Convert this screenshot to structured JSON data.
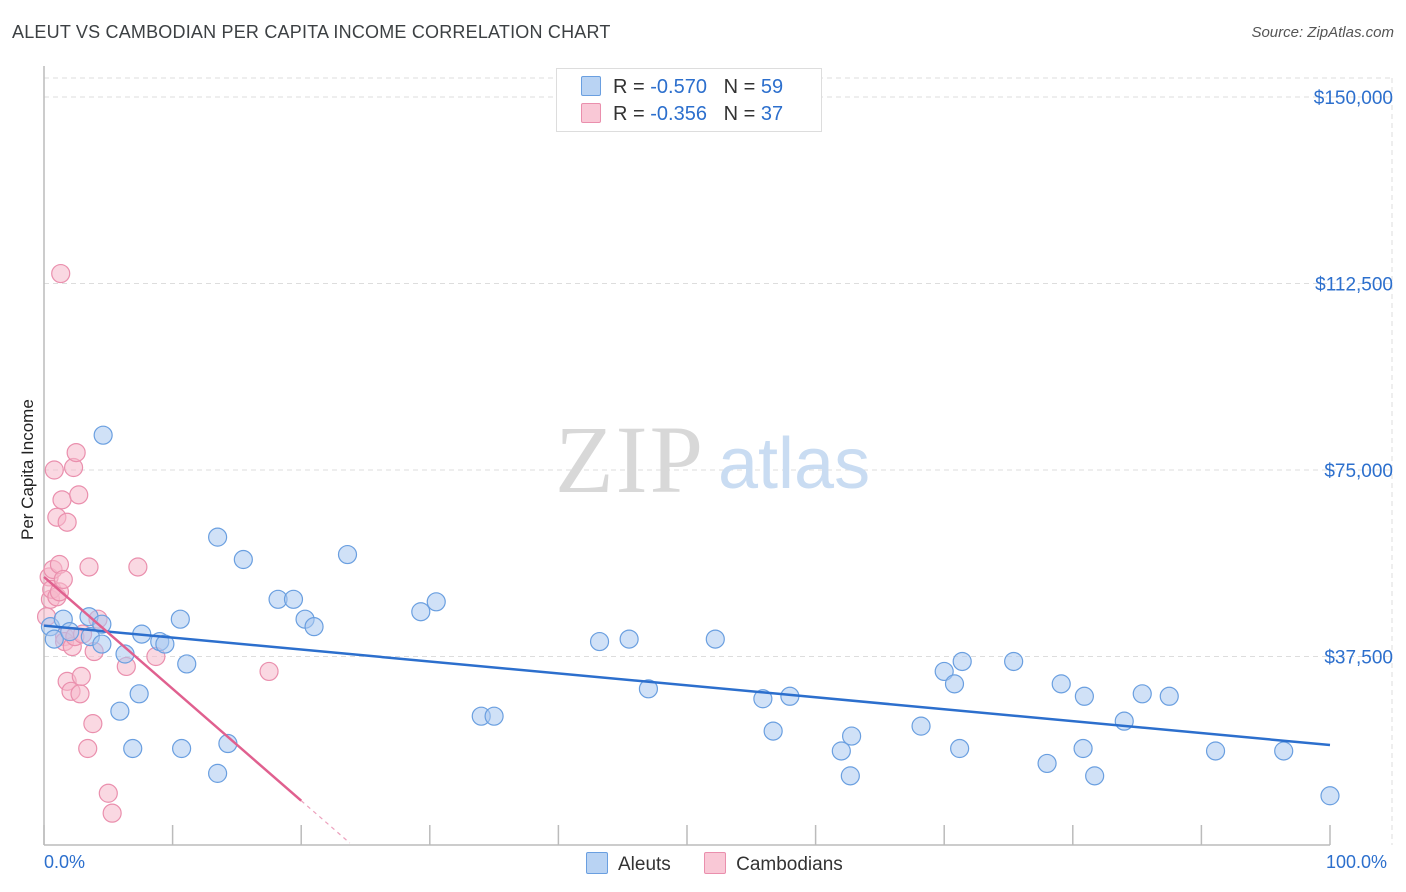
{
  "title": "ALEUT VS CAMBODIAN PER CAPITA INCOME CORRELATION CHART",
  "source": "Source: ZipAtlas.com",
  "watermark": {
    "zip": "ZIP",
    "atlas": "atlas"
  },
  "colors": {
    "aleut_fill": "#a9c9f0",
    "aleut_stroke": "#6a9fe0",
    "aleut_line": "#2c6fcd",
    "camb_fill": "#f6b8cb",
    "camb_stroke": "#ea8fad",
    "camb_line": "#e0608f",
    "axis_label": "#2c6fcd",
    "grid": "#dddddd"
  },
  "legend": {
    "rows": [
      {
        "r_label": "R =",
        "r_value": "-0.570",
        "n_label": "N =",
        "n_value": "59"
      },
      {
        "r_label": "R =",
        "r_value": "-0.356",
        "n_label": "N =",
        "n_value": "37"
      }
    ]
  },
  "bottom_legend": {
    "aleut": "Aleuts",
    "camb": "Cambodians"
  },
  "chart_data": {
    "type": "scatter",
    "title": "ALEUT VS CAMBODIAN PER CAPITA INCOME CORRELATION CHART",
    "xlabel": "",
    "ylabel": "Per Capita Income",
    "xlim": [
      0,
      100
    ],
    "ylim": [
      0,
      150000
    ],
    "x_tick_labels": [
      "0.0%",
      "100.0%"
    ],
    "y_ticks": [
      37500,
      75000,
      112500,
      150000
    ],
    "y_tick_labels": [
      "$37,500",
      "$75,000",
      "$112,500",
      "$150,000"
    ],
    "series": [
      {
        "name": "Aleuts",
        "r": -0.57,
        "n": 59,
        "trend": {
          "x": [
            0,
            100
          ],
          "y": [
            43700,
            19700
          ]
        },
        "points": [
          [
            0.5,
            43500
          ],
          [
            0.8,
            41000
          ],
          [
            1.5,
            45000
          ],
          [
            2.0,
            42500
          ],
          [
            3.5,
            45500
          ],
          [
            3.6,
            41500
          ],
          [
            4.5,
            40000
          ],
          [
            4.5,
            44000
          ],
          [
            4.6,
            82000
          ],
          [
            5.9,
            26500
          ],
          [
            6.3,
            38000
          ],
          [
            6.9,
            19000
          ],
          [
            7.4,
            30000
          ],
          [
            7.6,
            42000
          ],
          [
            9.0,
            40500
          ],
          [
            9.4,
            40000
          ],
          [
            10.6,
            45000
          ],
          [
            10.7,
            19000
          ],
          [
            11.1,
            36000
          ],
          [
            13.5,
            14000
          ],
          [
            13.5,
            61500
          ],
          [
            14.3,
            20000
          ],
          [
            15.5,
            57000
          ],
          [
            18.2,
            49000
          ],
          [
            19.4,
            49000
          ],
          [
            20.3,
            45000
          ],
          [
            21.0,
            43500
          ],
          [
            23.6,
            58000
          ],
          [
            29.3,
            46500
          ],
          [
            30.5,
            48500
          ],
          [
            34.0,
            25500
          ],
          [
            35.0,
            25500
          ],
          [
            43.2,
            40500
          ],
          [
            47.0,
            31000
          ],
          [
            52.2,
            41000
          ],
          [
            55.9,
            29000
          ],
          [
            56.7,
            22500
          ],
          [
            58.0,
            29500
          ],
          [
            62.0,
            18500
          ],
          [
            62.7,
            13500
          ],
          [
            62.8,
            21500
          ],
          [
            68.2,
            23500
          ],
          [
            70.0,
            34500
          ],
          [
            70.8,
            32000
          ],
          [
            71.2,
            19000
          ],
          [
            71.4,
            36500
          ],
          [
            75.4,
            36500
          ],
          [
            78.0,
            16000
          ],
          [
            79.1,
            32000
          ],
          [
            80.8,
            19000
          ],
          [
            80.9,
            29500
          ],
          [
            81.7,
            13500
          ],
          [
            84.0,
            24500
          ],
          [
            85.4,
            30000
          ],
          [
            87.5,
            29500
          ],
          [
            91.1,
            18500
          ],
          [
            96.4,
            18500
          ],
          [
            100.0,
            9500
          ],
          [
            45.5,
            41000
          ]
        ]
      },
      {
        "name": "Cambodians",
        "r": -0.356,
        "n": 37,
        "trend": {
          "x": [
            0,
            20
          ],
          "y": [
            53500,
            8500
          ]
        },
        "points": [
          [
            0.2,
            45500
          ],
          [
            0.4,
            53500
          ],
          [
            0.5,
            49000
          ],
          [
            0.6,
            51000
          ],
          [
            0.7,
            55000
          ],
          [
            0.8,
            75000
          ],
          [
            1.0,
            49500
          ],
          [
            1.0,
            65500
          ],
          [
            1.2,
            56000
          ],
          [
            1.2,
            50500
          ],
          [
            1.3,
            114500
          ],
          [
            1.4,
            69000
          ],
          [
            1.5,
            53000
          ],
          [
            1.6,
            41500
          ],
          [
            1.6,
            40500
          ],
          [
            1.8,
            32500
          ],
          [
            1.8,
            64500
          ],
          [
            2.1,
            30500
          ],
          [
            2.2,
            39500
          ],
          [
            2.3,
            75500
          ],
          [
            2.4,
            41500
          ],
          [
            2.5,
            78500
          ],
          [
            2.7,
            70000
          ],
          [
            2.8,
            30000
          ],
          [
            2.9,
            33500
          ],
          [
            3.0,
            42000
          ],
          [
            3.4,
            19000
          ],
          [
            3.5,
            55500
          ],
          [
            3.8,
            24000
          ],
          [
            3.9,
            38500
          ],
          [
            4.2,
            45000
          ],
          [
            5.0,
            10000
          ],
          [
            5.3,
            6000
          ],
          [
            6.4,
            35500
          ],
          [
            7.3,
            55500
          ],
          [
            8.7,
            37500
          ],
          [
            17.5,
            34500
          ]
        ]
      }
    ]
  }
}
